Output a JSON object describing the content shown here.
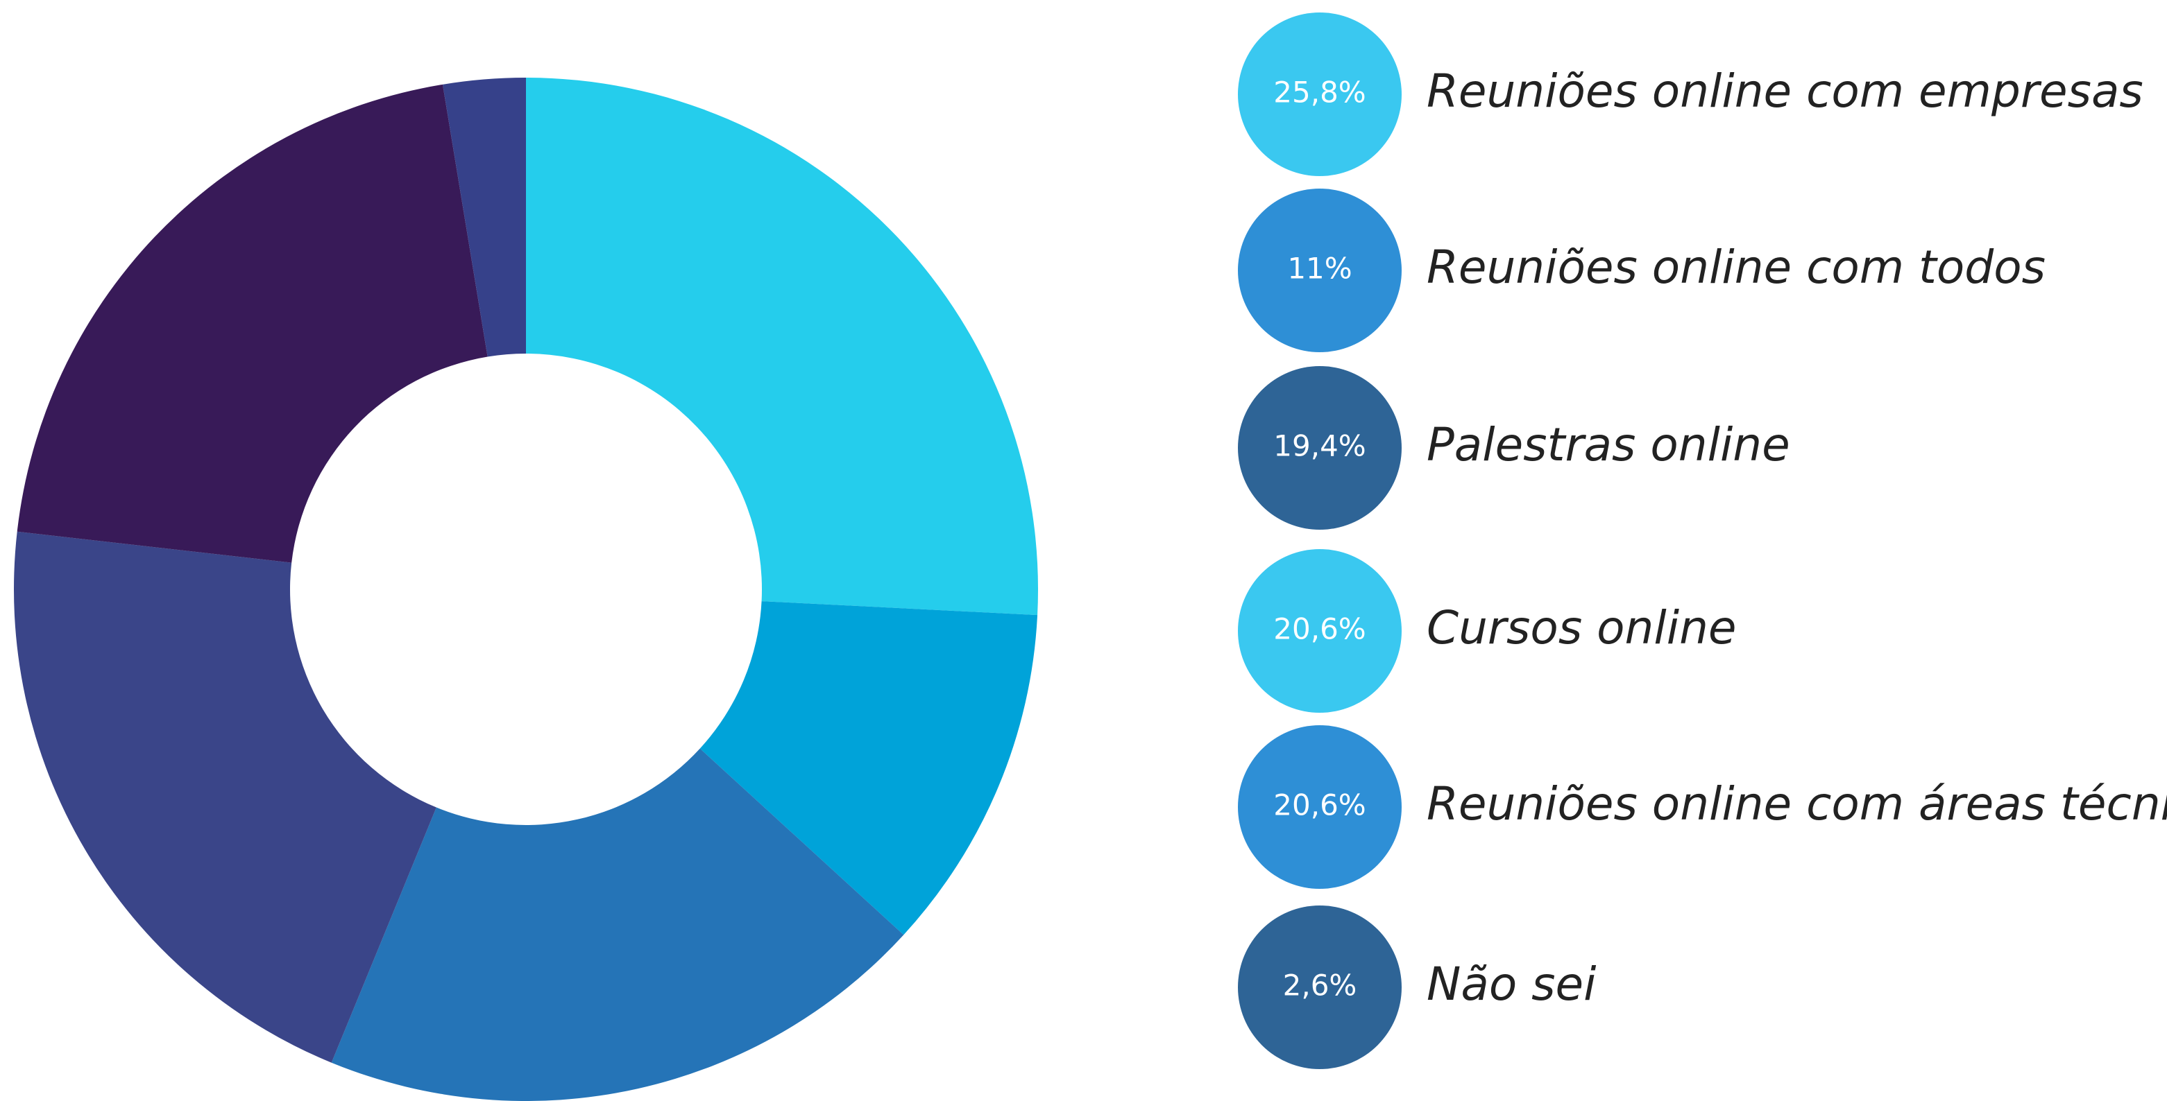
{
  "chart_data": {
    "type": "donut",
    "categories": [
      "Reuniões online com empresas",
      "Reuniões online com todos",
      "Palestras online",
      "Cursos online",
      "Reuniões online com áreas técnicas",
      "Não sei"
    ],
    "values": [
      25.8,
      11,
      19.4,
      20.6,
      20.6,
      2.6
    ],
    "value_labels": [
      "25,8%",
      "11%",
      "19,4%",
      "20,6%",
      "20,6%",
      "2,6%"
    ],
    "colors": [
      "#25cdec",
      "#00a3d9",
      "#2574b7",
      "#3a4589",
      "#381a58",
      "#36418a"
    ],
    "legend_colors": [
      "#3ac8f0",
      "#2e8fd6",
      "#2e6496",
      "#3ac8f0",
      "#2e8fd6",
      "#2e6496"
    ]
  }
}
